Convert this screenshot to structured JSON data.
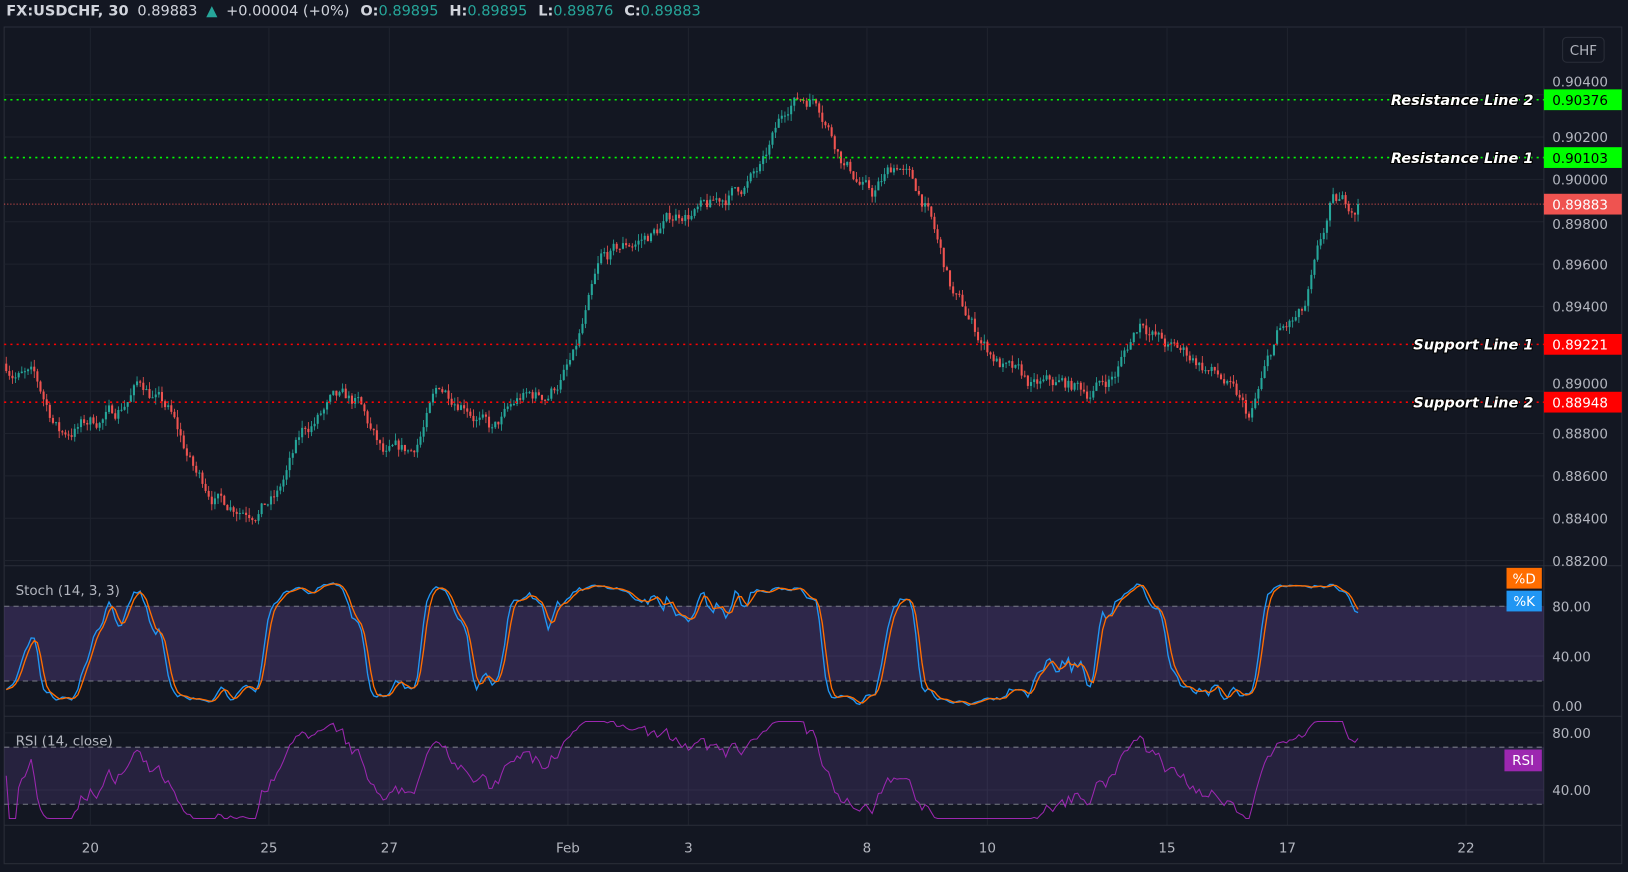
{
  "header": {
    "symbol": "FX:USDCHF, 30",
    "last": "0.89883",
    "change": "+0.00004 (+0%)",
    "o_label": "O:",
    "o": "0.89895",
    "h_label": "H:",
    "h": "0.89895",
    "l_label": "L:",
    "l": "0.89876",
    "c_label": "C:",
    "c": "0.89883",
    "up_icon": "triangle-up-icon"
  },
  "currency_button": "CHF",
  "colors": {
    "background": "#131722",
    "up": "#26a69a",
    "down": "#ef5350",
    "resistance": "#00ff00",
    "support": "#ff0000",
    "last_price": "#ef5350",
    "stoch_k": "#2196f3",
    "stoch_d": "#ff6d00",
    "rsi": "#9c27b0",
    "band": "#7e57c2"
  },
  "chart_data": [
    {
      "type": "candlestick",
      "x_axis_ticks": [
        "20",
        "25",
        "27",
        "Feb",
        "3",
        "8",
        "10",
        "15",
        "17",
        "22"
      ],
      "y_ticks": [
        "0.90400",
        "0.90200",
        "0.90000",
        "0.89800",
        "0.89600",
        "0.89400",
        "0.89000",
        "0.88800",
        "0.88600",
        "0.88400",
        "0.88200"
      ],
      "ylim": [
        0.882,
        0.9055
      ],
      "grid": true,
      "close_approx": [
        0.8913,
        0.8905,
        0.888,
        0.8885,
        0.889,
        0.8905,
        0.889,
        0.886,
        0.8848,
        0.8847,
        0.885,
        0.888,
        0.8893,
        0.8892,
        0.8866,
        0.887,
        0.89,
        0.8898,
        0.888,
        0.8895,
        0.8898,
        0.8915,
        0.8958,
        0.8968,
        0.8975,
        0.8985,
        0.8985,
        0.8995,
        0.9005,
        0.9038,
        0.904,
        0.901,
        0.8992,
        0.9008,
        0.8988,
        0.8945,
        0.8925,
        0.891,
        0.89,
        0.8902,
        0.89,
        0.8908,
        0.8935,
        0.892,
        0.8915,
        0.8905,
        0.8885,
        0.8925,
        0.8935,
        0.8985,
        0.8988
      ],
      "last_price": {
        "value": 0.89883,
        "label": "0.89883"
      },
      "horizontal_lines": [
        {
          "name": "Resistance Line 2",
          "value": 0.90376,
          "label": "0.90376",
          "kind": "resistance"
        },
        {
          "name": "Resistance Line 1",
          "value": 0.90103,
          "label": "0.90103",
          "kind": "resistance"
        },
        {
          "name": "Support Line 1",
          "value": 0.89221,
          "label": "0.89221",
          "kind": "support"
        },
        {
          "name": "Support Line 2",
          "value": 0.88948,
          "label": "0.88948",
          "kind": "support"
        }
      ]
    },
    {
      "type": "line",
      "title": "Stoch (14, 3, 3)",
      "y_ticks": [
        "80.00",
        "40.00",
        "0.00"
      ],
      "ylim": [
        0,
        100
      ],
      "band": [
        20,
        80
      ],
      "legend": [
        "%D",
        "%K"
      ]
    },
    {
      "type": "line",
      "title": "RSI (14, close)",
      "y_ticks": [
        "80.00",
        "40.00"
      ],
      "ylim": [
        20,
        90
      ],
      "band": [
        30,
        70
      ],
      "legend": [
        "RSI"
      ]
    }
  ]
}
